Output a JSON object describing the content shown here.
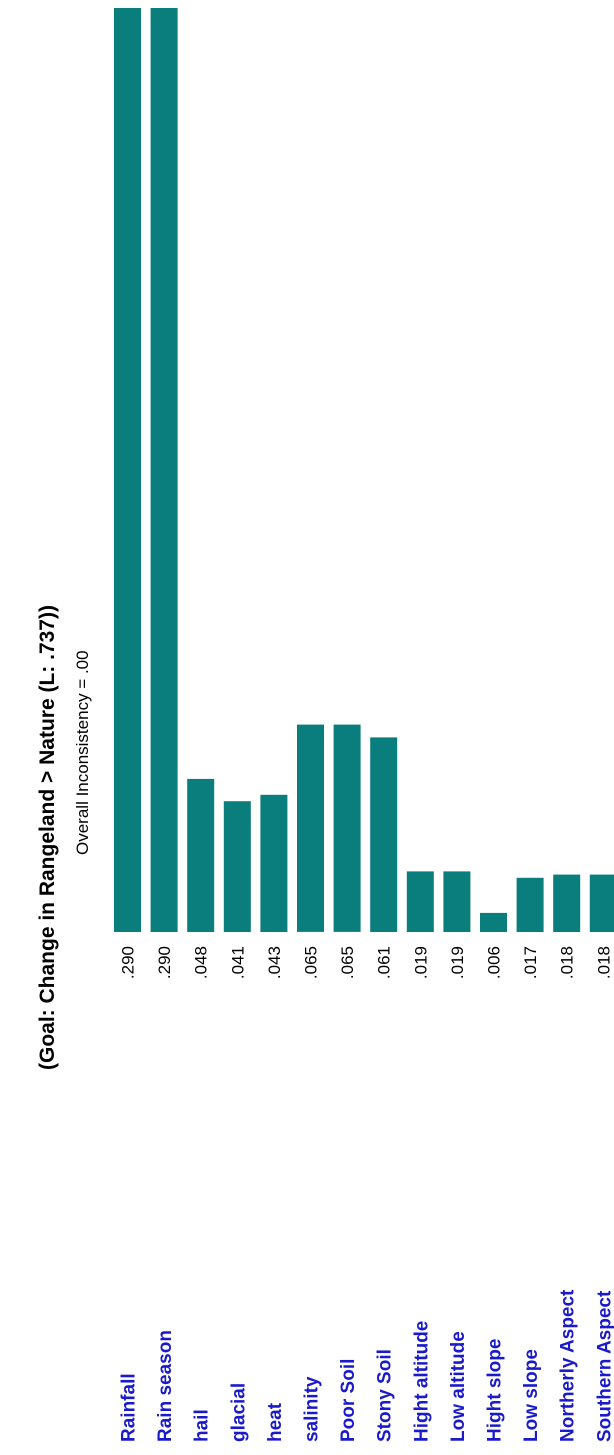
{
  "chart_data": {
    "type": "bar",
    "orientation": "vertical",
    "title": "(Goal: Change in Rangeland > Nature (L: .737))",
    "subtitle": "Overall Inconsistency = .00",
    "categories": [
      "Rainfall",
      "Rain season",
      "hail",
      "glacial",
      "heat",
      "salinity",
      "Poor Soil",
      "Stony Soil",
      "Hight altitude",
      "Low altitude",
      "Hight slope",
      "Low slope",
      "Northerly Aspect",
      "Southern Aspect"
    ],
    "value_labels": [
      ".290",
      ".290",
      ".048",
      ".041",
      ".043",
      ".065",
      ".065",
      ".061",
      ".019",
      ".019",
      ".006",
      ".017",
      ".018",
      ".018"
    ],
    "values": [
      0.29,
      0.29,
      0.048,
      0.041,
      0.043,
      0.065,
      0.065,
      0.061,
      0.019,
      0.019,
      0.006,
      0.017,
      0.018,
      0.018
    ],
    "grid": false,
    "legend": "none",
    "colors": {
      "bar": "#0a7d7d",
      "category_label": "#1a1acc",
      "text": "#000000"
    }
  }
}
